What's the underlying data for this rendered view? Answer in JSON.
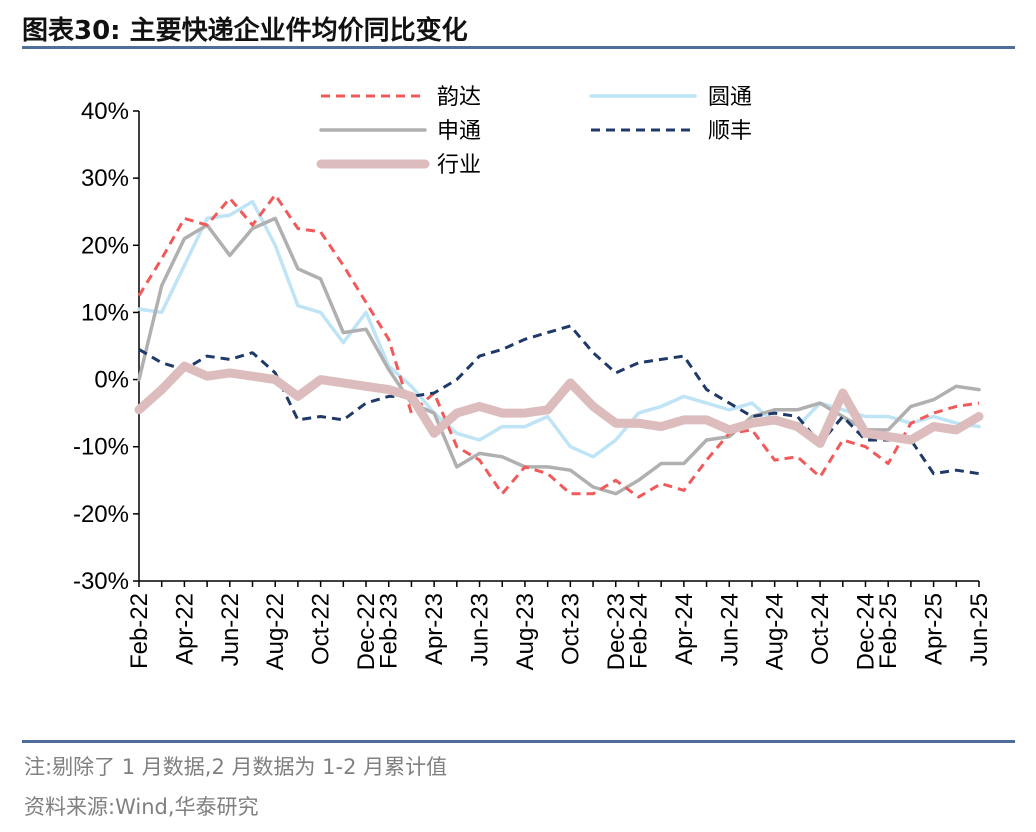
{
  "title": "图表30:  主要快递企业件均价同比变化",
  "note": "注:剔除了 1 月数据,2 月数据为 1-2 月累计值",
  "source": "资料来源:Wind,华泰研究",
  "chart_data": {
    "type": "line",
    "title": "",
    "xlabel": "",
    "ylabel": "",
    "ylim": [
      -30,
      40
    ],
    "y_ticks": [
      "-30%",
      "-20%",
      "-10%",
      "0%",
      "10%",
      "20%",
      "30%",
      "40%"
    ],
    "grid": false,
    "legend_position": "top",
    "x": [
      "Feb-22",
      "Mar-22",
      "Apr-22",
      "May-22",
      "Jun-22",
      "Jul-22",
      "Aug-22",
      "Sep-22",
      "Oct-22",
      "Nov-22",
      "Dec-22",
      "Feb-23",
      "Mar-23",
      "Apr-23",
      "May-23",
      "Jun-23",
      "Jul-23",
      "Aug-23",
      "Sep-23",
      "Oct-23",
      "Nov-23",
      "Dec-23",
      "Feb-24",
      "Mar-24",
      "Apr-24",
      "May-24",
      "Jun-24",
      "Jul-24",
      "Aug-24",
      "Sep-24",
      "Oct-24",
      "Nov-24",
      "Dec-24",
      "Feb-25",
      "Mar-25",
      "Apr-25",
      "May-25",
      "Jun-25"
    ],
    "x_tick_labels": [
      "Feb-22",
      "Apr-22",
      "Jun-22",
      "Aug-22",
      "Oct-22",
      "Dec-22",
      "Feb-23",
      "Apr-23",
      "Jun-23",
      "Aug-23",
      "Oct-23",
      "Dec-23",
      "Feb-24",
      "Apr-24",
      "Jun-24",
      "Aug-24",
      "Oct-24",
      "Dec-24",
      "Feb-25",
      "Apr-25",
      "Jun-25"
    ],
    "series": [
      {
        "name": "韵达",
        "color": "#f05a5a",
        "style": "dashed",
        "values": [
          12.5,
          18,
          24,
          23,
          27,
          23,
          27.5,
          22.5,
          22,
          17,
          11.5,
          6,
          -5,
          -2,
          -10,
          -12,
          -17,
          -13,
          -14,
          -17,
          -17,
          -15,
          -17.5,
          -15.5,
          -16.5,
          -12,
          -8,
          -7.5,
          -12,
          -11.5,
          -14.5,
          -9,
          -10,
          -12.5,
          -6.5,
          -5,
          -4,
          -3.5
        ]
      },
      {
        "name": "圆通",
        "color": "#bfe4f6",
        "style": "solid",
        "values": [
          10.5,
          10,
          17,
          24,
          24.5,
          26.5,
          20,
          11,
          10,
          5.5,
          10,
          2,
          -1,
          -5,
          -8,
          -9,
          -7,
          -7,
          -5.5,
          -10,
          -11.5,
          -9,
          -5,
          -4,
          -2.5,
          -3.5,
          -4.5,
          -3.5,
          -6.5,
          -7,
          -3.5,
          -4.5,
          -5.5,
          -5.5,
          -6.5,
          -5.5,
          -6.5,
          -7
        ]
      },
      {
        "name": "申通",
        "color": "#b0b0b0",
        "style": "solid",
        "values": [
          0,
          14,
          21,
          23,
          18.5,
          22.5,
          24,
          16.5,
          15,
          7,
          7.5,
          1.5,
          -3.5,
          -5,
          -13,
          -11,
          -11.5,
          -13,
          -13,
          -13.5,
          -16,
          -17,
          -15,
          -12.5,
          -12.5,
          -9,
          -8.5,
          -5.5,
          -4.5,
          -4.5,
          -3.5,
          -5.5,
          -7.5,
          -7.5,
          -4,
          -3,
          -1,
          -1.5
        ]
      },
      {
        "name": "顺丰",
        "color": "#1f3a68",
        "style": "dashed",
        "values": [
          4.5,
          2.5,
          1.5,
          3.5,
          3,
          4,
          1,
          -6,
          -5.5,
          -6,
          -3.5,
          -2.5,
          -2.5,
          -2,
          0,
          3.5,
          4.5,
          6,
          7,
          8,
          4,
          1,
          2.5,
          3,
          3.5,
          -1.5,
          -3.5,
          -5.5,
          -5,
          -5.5,
          -9.5,
          -5.5,
          -9,
          -9,
          -9,
          -14,
          -13.5,
          -14
        ]
      },
      {
        "name": "行业",
        "color": "#dcbcbc",
        "style": "bold",
        "values": [
          -4.5,
          -1.5,
          2,
          0.5,
          1,
          0.5,
          0,
          -2.5,
          0,
          -0.5,
          -1,
          -1.5,
          -2.5,
          -8,
          -5,
          -4,
          -5,
          -5,
          -4.5,
          -0.5,
          -4,
          -6.5,
          -6.5,
          -7,
          -6,
          -6,
          -7.5,
          -6.5,
          -6,
          -7,
          -9.5,
          -2,
          -8,
          -8.5,
          -9,
          -7,
          -7.5,
          -5.5
        ]
      }
    ]
  }
}
